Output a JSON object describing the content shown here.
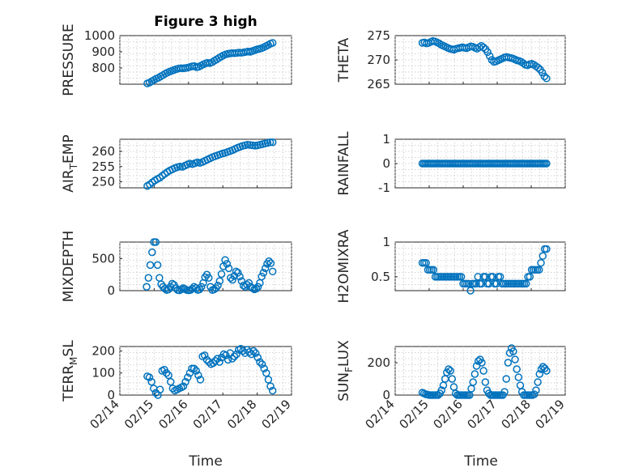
{
  "figure": {
    "title": "Figure 3 high",
    "x_label": "Time"
  },
  "colors": {
    "marker": "#0072bd",
    "axis": "#262626",
    "grid": "#c8c8c8"
  },
  "chart_data": [
    {
      "type": "scatter",
      "title": "Figure 3 high",
      "ylabel": "PRESSURE",
      "ylabel_sub": null,
      "ylim": [
        700,
        1000
      ],
      "yticks": [
        800,
        900,
        1000
      ],
      "xticks": null,
      "x_start": 14.8,
      "x_end": 18.45,
      "values": [
        705,
        710,
        718,
        726,
        734,
        740,
        748,
        756,
        765,
        772,
        778,
        783,
        788,
        793,
        797,
        799,
        798,
        800,
        802,
        806,
        810,
        812,
        805,
        808,
        815,
        822,
        828,
        832,
        830,
        836,
        845,
        853,
        862,
        870,
        878,
        884,
        888,
        890,
        892,
        891,
        893,
        895,
        894,
        896,
        899,
        902,
        900,
        905,
        910,
        915,
        918,
        922,
        928,
        935,
        942,
        950,
        955
      ]
    },
    {
      "type": "scatter",
      "title": "",
      "ylabel": "THETA",
      "ylabel_sub": null,
      "ylim": [
        265,
        275
      ],
      "yticks": [
        265,
        270,
        275
      ],
      "xticks": null,
      "x_start": 14.8,
      "x_end": 18.45,
      "values": [
        273.5,
        273.6,
        273.4,
        273.5,
        273.7,
        273.9,
        273.8,
        273.6,
        273.4,
        273.1,
        272.9,
        272.7,
        272.5,
        272.3,
        272.2,
        272.1,
        272.3,
        272.4,
        272.5,
        272.6,
        272.5,
        272.4,
        272.6,
        272.8,
        272.7,
        272.5,
        272.3,
        272.6,
        272.9,
        272.6,
        272.2,
        271.6,
        270.8,
        270.0,
        269.6,
        269.7,
        269.9,
        270.1,
        270.3,
        270.5,
        270.6,
        270.5,
        270.4,
        270.3,
        270.1,
        269.9,
        269.8,
        269.6,
        269.3,
        269.0,
        268.9,
        269.1,
        269.2,
        269.0,
        268.7,
        268.4,
        268.0,
        267.4,
        266.6,
        266.2
      ]
    },
    {
      "type": "scatter",
      "title": "",
      "ylabel": "AIR",
      "ylabel_sub": "T",
      "ylabel_tail": "EMP",
      "ylim": [
        248,
        264
      ],
      "yticks": [
        250,
        255,
        260
      ],
      "xticks": null,
      "x_start": 14.8,
      "x_end": 18.45,
      "values": [
        248.6,
        249.1,
        249.8,
        250.4,
        250.9,
        251.3,
        252.0,
        252.6,
        253.2,
        253.7,
        254.1,
        254.5,
        254.8,
        255.0,
        254.9,
        255.3,
        255.7,
        256.0,
        255.8,
        256.1,
        256.4,
        256.2,
        256.5,
        256.9,
        257.3,
        257.7,
        258.1,
        258.4,
        258.7,
        259.0,
        259.3,
        259.5,
        259.8,
        260.1,
        260.4,
        260.8,
        261.2,
        261.5,
        261.8,
        262.0,
        262.2,
        262.1,
        262.0,
        261.9,
        262.0,
        262.2,
        262.4,
        262.6,
        262.8,
        263.0,
        263.0
      ]
    },
    {
      "type": "scatter",
      "title": "",
      "ylabel": "RAINFALL",
      "ylabel_sub": null,
      "ylim": [
        -1,
        1
      ],
      "yticks": [
        -1,
        0,
        1
      ],
      "xticks": null,
      "x_start": 14.8,
      "x_end": 18.45,
      "values": [
        0,
        0,
        0,
        0,
        0,
        0,
        0,
        0,
        0,
        0,
        0,
        0,
        0,
        0,
        0,
        0,
        0,
        0,
        0,
        0,
        0,
        0,
        0,
        0,
        0,
        0,
        0,
        0,
        0,
        0,
        0,
        0,
        0,
        0,
        0,
        0,
        0,
        0,
        0,
        0,
        0,
        0,
        0,
        0,
        0,
        0,
        0,
        0,
        0,
        0,
        0,
        0,
        0,
        0,
        0,
        0,
        0,
        0,
        0,
        0,
        0,
        0,
        0,
        0,
        0,
        0,
        0,
        0,
        0,
        0,
        0,
        0,
        0,
        0,
        0,
        0,
        0,
        0,
        0,
        0
      ]
    },
    {
      "type": "scatter",
      "title": "",
      "ylabel": "MIXDEPTH",
      "ylabel_sub": null,
      "ylim": [
        0,
        760
      ],
      "yticks": [
        0,
        500
      ],
      "xticks": null,
      "x_start": 14.78,
      "x_end": 18.45,
      "values": [
        60,
        200,
        400,
        600,
        760,
        760,
        400,
        200,
        100,
        60,
        30,
        10,
        20,
        60,
        110,
        90,
        40,
        10,
        5,
        20,
        40,
        25,
        10,
        5,
        10,
        30,
        60,
        40,
        10,
        20,
        60,
        120,
        210,
        250,
        200,
        60,
        10,
        20,
        40,
        80,
        150,
        260,
        380,
        480,
        420,
        350,
        200,
        170,
        230,
        300,
        280,
        220,
        150,
        80,
        60,
        90,
        120,
        60,
        40,
        20,
        30,
        60,
        120,
        220,
        280,
        350,
        420,
        460,
        430,
        300
      ]
    },
    {
      "type": "scatter",
      "title": "",
      "ylabel": "H2OMIXRA",
      "ylabel_sub": null,
      "ylim": [
        0.3,
        1.0
      ],
      "yticks": [
        0.5,
        1
      ],
      "xticks": null,
      "x_start": 14.8,
      "x_end": 18.45,
      "values": [
        0.7,
        0.7,
        0.7,
        0.6,
        0.6,
        0.6,
        0.6,
        0.5,
        0.5,
        0.5,
        0.5,
        0.5,
        0.5,
        0.5,
        0.5,
        0.5,
        0.5,
        0.5,
        0.5,
        0.5,
        0.5,
        0.5,
        0.4,
        0.4,
        0.4,
        0.4,
        0.3,
        0.4,
        0.4,
        0.4,
        0.5,
        0.4,
        0.4,
        0.5,
        0.5,
        0.4,
        0.4,
        0.5,
        0.5,
        0.4,
        0.4,
        0.5,
        0.5,
        0.4,
        0.4,
        0.4,
        0.4,
        0.4,
        0.4,
        0.4,
        0.4,
        0.4,
        0.4,
        0.4,
        0.4,
        0.4,
        0.4,
        0.5,
        0.5,
        0.6,
        0.6,
        0.6,
        0.6,
        0.6,
        0.7,
        0.8,
        0.9,
        0.9
      ]
    },
    {
      "type": "scatter",
      "title": "",
      "ylabel": "TERR",
      "ylabel_sub": "M",
      "ylabel_tail": "SL",
      "ylim": [
        0,
        220
      ],
      "yticks": [
        0,
        100,
        200
      ],
      "xticks": [
        "02/14",
        "02/15",
        "02/16",
        "02/17",
        "02/18",
        "02/19"
      ],
      "x_start": 14.8,
      "x_end": 18.45,
      "values": [
        85,
        80,
        60,
        30,
        10,
        0,
        25,
        110,
        115,
        100,
        90,
        60,
        30,
        20,
        25,
        30,
        35,
        40,
        60,
        80,
        100,
        120,
        120,
        110,
        90,
        70,
        175,
        180,
        160,
        150,
        140,
        145,
        155,
        165,
        150,
        170,
        185,
        180,
        160,
        190,
        165,
        175,
        185,
        205,
        210,
        200,
        190,
        205,
        195,
        185,
        200,
        190,
        170,
        150,
        140,
        120,
        100,
        70,
        40,
        20
      ]
    },
    {
      "type": "scatter",
      "title": "",
      "ylabel": "SUN",
      "ylabel_sub": "F",
      "ylabel_tail": "LUX",
      "ylim": [
        0,
        300
      ],
      "yticks": [
        0,
        200
      ],
      "xticks": [
        "02/14",
        "02/15",
        "02/16",
        "02/17",
        "02/18",
        "02/19"
      ],
      "x_start": 14.8,
      "x_end": 18.45,
      "values": [
        15,
        10,
        5,
        3,
        0,
        0,
        0,
        0,
        0,
        0,
        10,
        30,
        60,
        100,
        140,
        160,
        150,
        100,
        50,
        10,
        0,
        0,
        0,
        0,
        0,
        0,
        0,
        0,
        40,
        80,
        130,
        180,
        210,
        220,
        200,
        150,
        80,
        30,
        10,
        0,
        0,
        0,
        0,
        0,
        0,
        0,
        0,
        20,
        100,
        200,
        260,
        290,
        270,
        220,
        160,
        110,
        60,
        20,
        0,
        0,
        0,
        0,
        0,
        0,
        5,
        30,
        80,
        130,
        160,
        175,
        165,
        150
      ]
    }
  ]
}
